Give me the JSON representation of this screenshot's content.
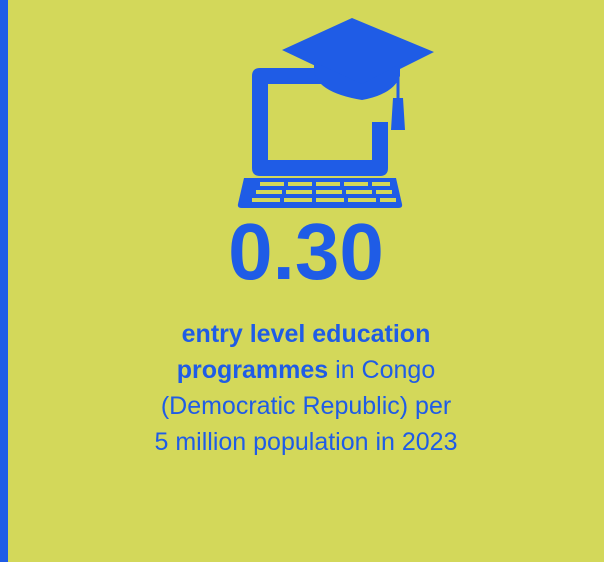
{
  "stat": {
    "value": "0.30",
    "caption_bold_line1": "entry level education",
    "caption_bold_line2": "programmes",
    "caption_rest_line2": " in Congo",
    "caption_line3": "(Democratic Republic) per",
    "caption_line4": "5 million population in 2023"
  },
  "colors": {
    "background": "#d3d85a",
    "accent": "#1f5ce6"
  },
  "icon": "laptop-graduation-cap-icon"
}
